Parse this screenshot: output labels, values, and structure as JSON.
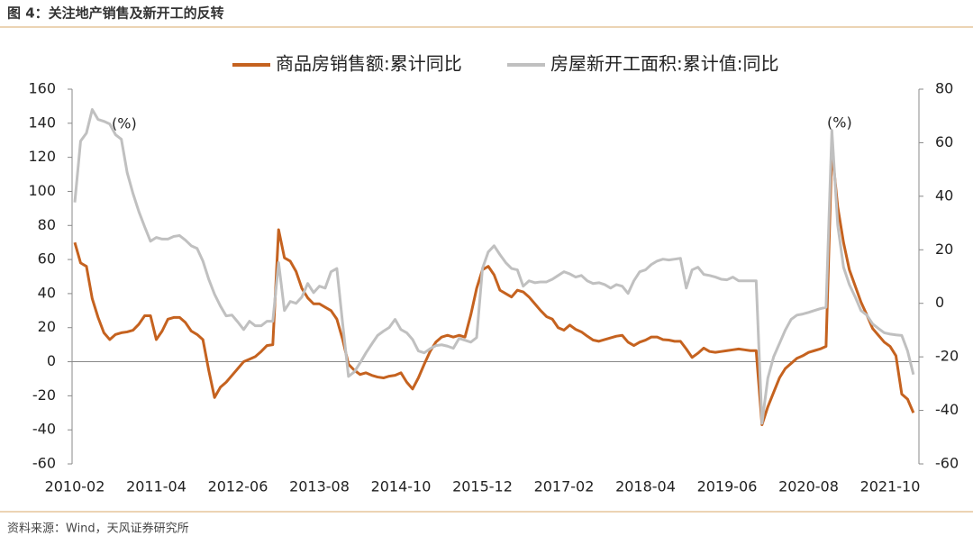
{
  "chart_data": {
    "type": "line",
    "title": "图 4：关注地产销售及新开工的反转",
    "source": "资料来源：Wind，天风证券研究所",
    "annotations": [
      "(%)",
      "(%)"
    ],
    "categories": [
      "2010-02",
      null,
      null,
      null,
      null,
      null,
      null,
      null,
      null,
      null,
      null,
      null,
      null,
      null,
      "2011-04",
      null,
      null,
      null,
      null,
      null,
      null,
      null,
      null,
      null,
      null,
      null,
      null,
      null,
      "2012-06",
      null,
      null,
      null,
      null,
      null,
      null,
      null,
      null,
      null,
      null,
      null,
      null,
      null,
      "2013-08",
      null,
      null,
      null,
      null,
      null,
      null,
      null,
      null,
      null,
      null,
      null,
      null,
      null,
      "2014-10",
      null,
      null,
      null,
      null,
      null,
      null,
      null,
      null,
      null,
      null,
      null,
      null,
      null,
      "2015-12",
      null,
      null,
      null,
      null,
      null,
      null,
      null,
      null,
      null,
      null,
      null,
      null,
      null,
      "2017-02",
      null,
      null,
      null,
      null,
      null,
      null,
      null,
      null,
      null,
      null,
      null,
      null,
      null,
      "2018-04",
      null,
      null,
      null,
      null,
      null,
      null,
      null,
      null,
      null,
      null,
      null,
      null,
      null,
      "2019-06",
      null,
      null,
      null,
      null,
      null,
      null,
      null,
      null,
      null,
      null,
      null,
      null,
      null,
      "2020-08",
      null,
      null,
      null,
      null,
      null,
      null,
      null,
      null,
      null,
      null,
      null,
      null,
      null,
      "2021-10",
      null,
      null,
      null,
      null
    ],
    "series": [
      {
        "name": "商品房销售额:累计同比",
        "color": "#c5621f",
        "axis": "y",
        "values": [
          70,
          58,
          56,
          37,
          26,
          17,
          13,
          16,
          17,
          17.5,
          18.5,
          22,
          27,
          27,
          13,
          18,
          25,
          26,
          26,
          23,
          18,
          16,
          13,
          -5,
          -21,
          -15,
          -12,
          -8,
          -4,
          0,
          1.5,
          3,
          6,
          9.5,
          10,
          77.5,
          61,
          59,
          53,
          43,
          37.5,
          34,
          34,
          32,
          30,
          25,
          13,
          -1.5,
          -5,
          -7.5,
          -6.5,
          -8,
          -9,
          -9.5,
          -8.5,
          -8,
          -6.5,
          -12,
          -16,
          -9.5,
          -1.5,
          6,
          11.5,
          14.5,
          15.5,
          14.5,
          15.5,
          14.5,
          27.5,
          43,
          54,
          56,
          51,
          42,
          40,
          38,
          42,
          41,
          38,
          34,
          30,
          26.5,
          25,
          20,
          18.5,
          21.5,
          19,
          17.5,
          15,
          12.7,
          12,
          13,
          14,
          15,
          15.5,
          11.5,
          9.5,
          11.5,
          12.7,
          14.5,
          14.5,
          13,
          12.7,
          12,
          12,
          7.5,
          2.5,
          5,
          8,
          6,
          5.5,
          6,
          6.5,
          7,
          7.5,
          7,
          6.5,
          6.5,
          -37,
          -26.5,
          -18,
          -9.5,
          -4,
          -1,
          2,
          3.5,
          5.5,
          6.5,
          7.5,
          9,
          125,
          91,
          70,
          54,
          44.5,
          35,
          27.5,
          19.5,
          15.5,
          11.5,
          9,
          3.5,
          -19,
          -22,
          -30
        ]
      },
      {
        "name": "房屋新开工面积:累计值:同比",
        "color": "#c0c0c0",
        "axis": "y2",
        "values": [
          37.7,
          60.6,
          63.6,
          72.4,
          68.7,
          68,
          67,
          63,
          61.3,
          48.8,
          41,
          34.3,
          28.6,
          23.2,
          24.6,
          24,
          24,
          25,
          25.3,
          23.6,
          21.5,
          20.5,
          15.8,
          9,
          3.4,
          -1,
          -4.7,
          -4.4,
          -7,
          -9.8,
          -6.7,
          -8.4,
          -8.4,
          -6.7,
          -6.7,
          15.2,
          -2.7,
          0.7,
          0,
          2.4,
          7.4,
          4,
          6.4,
          5.7,
          11.8,
          13,
          -7.7,
          -27.3,
          -25.6,
          -22.2,
          -18.5,
          -15.2,
          -12,
          -10.4,
          -9,
          -6,
          -9.8,
          -11,
          -13.5,
          -17.8,
          -18.5,
          -17,
          -15.8,
          -15.5,
          -16,
          -16.8,
          -13.1,
          -13.8,
          -14.5,
          -12.8,
          13,
          19.2,
          21.5,
          18.2,
          15.2,
          13,
          12.5,
          6.4,
          8.4,
          7.7,
          8,
          8,
          9,
          10.4,
          11.8,
          11,
          9.8,
          10.4,
          8.4,
          7.4,
          7.7,
          7,
          5.7,
          7,
          6.4,
          3.7,
          8.4,
          11.8,
          12.5,
          14.5,
          15.8,
          16.5,
          16.2,
          16.5,
          16.8,
          5.7,
          12.5,
          13.5,
          10.8,
          10.4,
          9.8,
          9,
          8.8,
          9.8,
          8.4,
          8.4,
          8.4,
          8.4,
          -44.8,
          -28,
          -20,
          -15,
          -10,
          -6,
          -4.4,
          -4,
          -3.4,
          -2.7,
          -2,
          -1.5,
          64.6,
          29.3,
          13.5,
          7,
          2.4,
          -2.7,
          -4.4,
          -7.7,
          -9.4,
          -11,
          -11.5,
          -11.8,
          -12,
          -17.8,
          -26.6
        ]
      }
    ],
    "ylim": [
      -60,
      160
    ],
    "yticks": [
      -60,
      -40,
      -20,
      0,
      20,
      40,
      60,
      80,
      100,
      120,
      140,
      160
    ],
    "y2lim": [
      -60,
      80
    ],
    "y2ticks": [
      -60,
      -40,
      -20,
      0,
      20,
      40,
      60,
      80
    ],
    "legend": "top"
  }
}
